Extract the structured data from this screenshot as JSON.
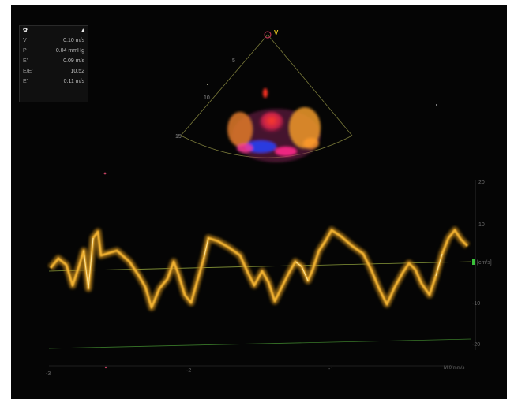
{
  "measurements": {
    "rows": [
      {
        "label": "V",
        "value": "0.10 m/s"
      },
      {
        "label": "P",
        "value": "0.04 mmHg"
      },
      {
        "label": "E'",
        "value": "0.09 m/s"
      },
      {
        "label": "E/E'",
        "value": "10.52"
      },
      {
        "label": "E'",
        "value": "0.11 m/s"
      }
    ]
  },
  "sector": {
    "marker": "V",
    "depth_labels": [
      "5",
      "10",
      "15"
    ]
  },
  "doppler": {
    "unit_label": "[cm/s]",
    "velocity_ticks": [
      "20",
      "10",
      "-10",
      "-20"
    ],
    "time_ticks": [
      "-3",
      "-2",
      "-1"
    ],
    "time_unit": "M:0 mm/s"
  },
  "colors": {
    "background": "#050505",
    "trace": "#f2b233",
    "baseline": "#8a9b3a",
    "grid": "#3a6a2a"
  }
}
